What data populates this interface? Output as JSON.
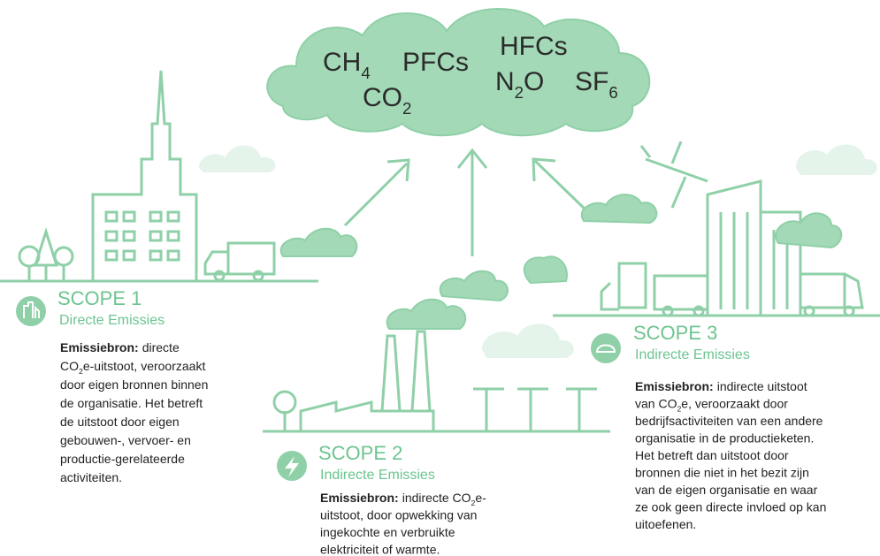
{
  "gases": [
    [
      "CH",
      "4"
    ],
    [
      "PFCs"
    ],
    [
      "HFCs"
    ],
    [
      "CO",
      "2"
    ],
    [
      "N",
      "2",
      "O"
    ],
    [
      "SF",
      "6"
    ]
  ],
  "scopes": [
    {
      "title": "SCOPE 1",
      "subtitle": "Directe Emissies",
      "label": "Emissiebron:",
      "lines": [
        [
          "directe"
        ],
        [
          "CO",
          "2",
          "e-uitstoot, veroorzaakt"
        ],
        [
          "door eigen bronnen binnen"
        ],
        [
          "de organisatie. Het betreft"
        ],
        [
          "de uitstoot door eigen"
        ],
        [
          "gebouwen-, vervoer- en"
        ],
        [
          "productie-gerelateerde"
        ],
        [
          "activiteiten."
        ]
      ]
    },
    {
      "title": "SCOPE 2",
      "subtitle": "Indirecte Emissies",
      "label": "Emissiebron:",
      "lines": [
        [
          "indirecte CO",
          "2",
          "e-"
        ],
        [
          "uitstoot, door opwekking van"
        ],
        [
          "ingekochte en verbruikte"
        ],
        [
          "elektriciteit of warmte."
        ]
      ]
    },
    {
      "title": "SCOPE 3",
      "subtitle": "Indirecte Emissies",
      "label": "Emissiebron:",
      "lines": [
        [
          "indirecte uitstoot"
        ],
        [
          "van CO",
          "2",
          "e, veroorzaakt door"
        ],
        [
          "bedrijfsactiviteiten van een andere"
        ],
        [
          "organisatie in de productieketen."
        ],
        [
          "Het betreft dan uitstoot door"
        ],
        [
          "bronnen die niet in het bezit zijn"
        ],
        [
          "van de eigen organisatie en waar"
        ],
        [
          "ze ook geen directe invloed op kan"
        ],
        [
          "uitoefenen."
        ]
      ]
    }
  ]
}
